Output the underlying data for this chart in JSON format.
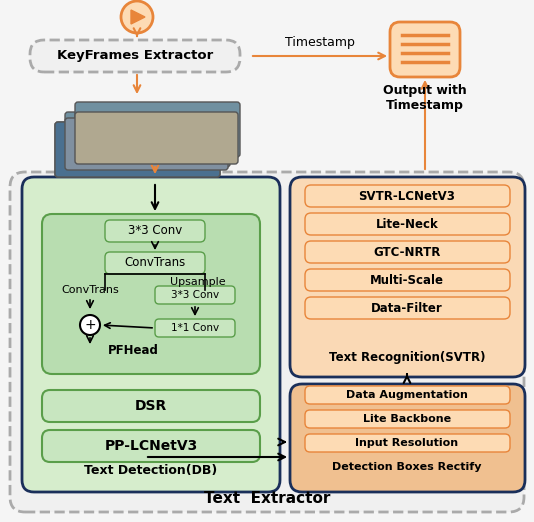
{
  "fig_width": 5.34,
  "fig_height": 5.22,
  "bg_color": "#f5f5f5",
  "orange_light": "#FDDBB4",
  "orange_mid": "#F5A855",
  "orange_dark": "#E8853A",
  "green_light": "#C8E6C0",
  "green_mid": "#90C97A",
  "green_dark": "#5A9E4A",
  "navy": "#1A2F5A",
  "gray_dashed": "#AAAAAA",
  "white": "#FFFFFF",
  "title_text": "Text  Extractor",
  "keyframes_text": "KeyFrames Extractor",
  "timestamp_text": "Timestamp",
  "output_text": "Output with\nTimestamp",
  "det_title": "Text Detection(DB)",
  "rec_title": "Text Recognition(SVTR)",
  "det_items": [
    "3*3 Conv",
    "ConvTrans",
    "PP-LCNetV3",
    "DSR"
  ],
  "rec_items_top": [
    "SVTR-LCNetV3",
    "Lite-Neck",
    "GTC-NRTR",
    "Multi-Scale",
    "Data-Filter"
  ],
  "rec_items_bot": [
    "Data Augmentation",
    "Lite Backbone",
    "Input Resolution",
    "Detection Boxes Rectify"
  ],
  "inner_items": [
    "ConvTrans",
    "Upsample",
    "3*3 Conv",
    "1*1 Conv"
  ],
  "pfhead_text": "PFHead"
}
